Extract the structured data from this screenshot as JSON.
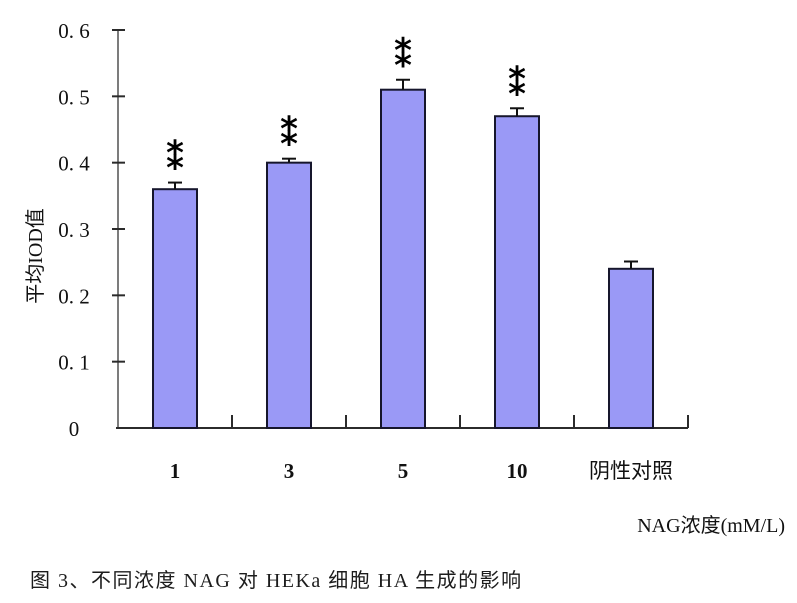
{
  "figure": {
    "caption": "图 3、不同浓度 NAG 对 HEKa 细胞 HA 生成的影响"
  },
  "chart_data": {
    "type": "bar",
    "title": "",
    "categories": [
      "1",
      "3",
      "5",
      "10",
      "阴性对照"
    ],
    "values": [
      0.36,
      0.4,
      0.51,
      0.47,
      0.24
    ],
    "error_bars": [
      0.01,
      0.006,
      0.015,
      0.012,
      0.011
    ],
    "significance": [
      "**",
      "**",
      "**",
      "**",
      ""
    ],
    "ylabel": "平均IOD值",
    "xlabel": "NAG浓度(mM/L)",
    "ylim": [
      0,
      0.6
    ],
    "yticks": [
      0,
      0.1,
      0.2,
      0.3,
      0.4,
      0.5,
      0.6
    ],
    "ytick_labels": [
      "0",
      "0. 1",
      "0. 2",
      "0. 3",
      "0. 4",
      "0. 5",
      "0. 6"
    ],
    "grid": false,
    "legend": false,
    "colors": {
      "bar_fill": "#9a99f6",
      "bar_border": "#16162c",
      "y_axis": "#7c7c7c",
      "x_axis": "#2b2b2b",
      "tick": "#2b2b2b",
      "error_bar": "#111111",
      "text": "#111111"
    }
  }
}
